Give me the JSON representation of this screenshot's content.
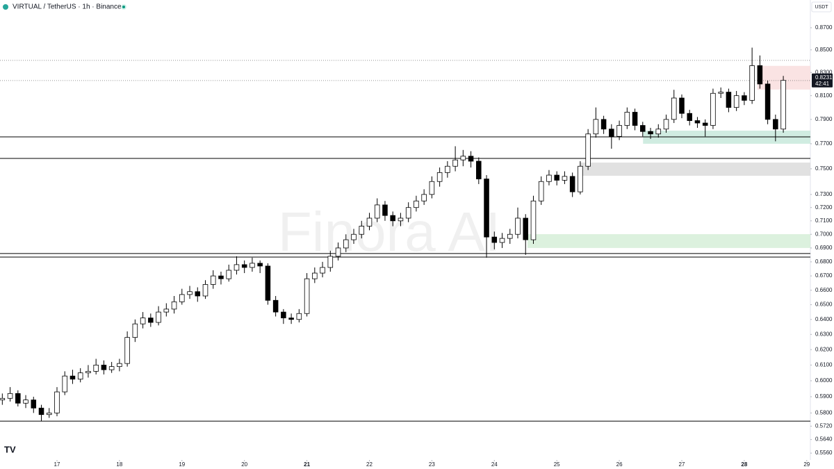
{
  "chart_data": {
    "type": "candlestick",
    "title": "VIRTUAL / TetherUS · 1h · Binance",
    "currency": "USDT",
    "watermark": "Finora AI",
    "countdown": "42:41",
    "log_scale": true,
    "up_color": "#ffffff",
    "down_color": "#000000",
    "x": [
      16.125,
      16.25,
      16.375,
      16.5,
      16.625,
      16.75,
      16.875,
      17,
      17.125,
      17.25,
      17.375,
      17.5,
      17.625,
      17.75,
      17.875,
      18,
      18.125,
      18.25,
      18.375,
      18.5,
      18.625,
      18.75,
      18.875,
      19,
      19.125,
      19.25,
      19.375,
      19.5,
      19.625,
      19.75,
      19.875,
      20,
      20.125,
      20.25,
      20.375,
      20.5,
      20.625,
      20.75,
      20.875,
      21,
      21.125,
      21.25,
      21.375,
      21.5,
      21.625,
      21.75,
      21.875,
      22,
      22.125,
      22.25,
      22.375,
      22.5,
      22.625,
      22.75,
      22.875,
      23,
      23.125,
      23.25,
      23.375,
      23.5,
      23.625,
      23.75,
      23.875,
      24,
      24.125,
      24.25,
      24.375,
      24.5,
      24.625,
      24.75,
      24.875,
      25,
      25.125,
      25.25,
      25.375,
      25.5,
      25.625,
      25.75,
      25.875,
      26,
      26.125,
      26.25,
      26.375,
      26.5,
      26.625,
      26.75,
      26.875,
      27,
      27.125,
      27.25,
      27.375,
      27.5,
      27.625,
      27.75,
      27.875,
      28,
      28.125,
      28.25,
      28.375,
      28.5,
      28.625
    ],
    "open": [
      0.588,
      0.589,
      0.592,
      0.586,
      0.588,
      0.583,
      0.579,
      0.58,
      0.593,
      0.603,
      0.601,
      0.605,
      0.606,
      0.61,
      0.607,
      0.609,
      0.611,
      0.628,
      0.637,
      0.641,
      0.638,
      0.645,
      0.647,
      0.652,
      0.657,
      0.659,
      0.656,
      0.664,
      0.67,
      0.668,
      0.674,
      0.678,
      0.676,
      0.679,
      0.677,
      0.653,
      0.645,
      0.641,
      0.64,
      0.644,
      0.668,
      0.672,
      0.676,
      0.684,
      0.69,
      0.696,
      0.7,
      0.706,
      0.712,
      0.722,
      0.714,
      0.71,
      0.712,
      0.72,
      0.725,
      0.73,
      0.74,
      0.747,
      0.752,
      0.757,
      0.76,
      0.756,
      0.742,
      0.698,
      0.694,
      0.697,
      0.7,
      0.712,
      0.696,
      0.725,
      0.74,
      0.745,
      0.741,
      0.744,
      0.732,
      0.752,
      0.778,
      0.79,
      0.782,
      0.776,
      0.785,
      0.796,
      0.785,
      0.78,
      0.778,
      0.782,
      0.79,
      0.808,
      0.795,
      0.789,
      0.787,
      0.785,
      0.812,
      0.813,
      0.8,
      0.81,
      0.806,
      0.836,
      0.82,
      0.79,
      0.782
    ],
    "high": [
      0.592,
      0.596,
      0.594,
      0.591,
      0.59,
      0.585,
      0.583,
      0.596,
      0.606,
      0.607,
      0.608,
      0.61,
      0.614,
      0.613,
      0.612,
      0.614,
      0.632,
      0.64,
      0.645,
      0.644,
      0.649,
      0.651,
      0.656,
      0.661,
      0.663,
      0.662,
      0.667,
      0.674,
      0.673,
      0.678,
      0.684,
      0.681,
      0.683,
      0.681,
      0.679,
      0.656,
      0.647,
      0.644,
      0.647,
      0.672,
      0.676,
      0.68,
      0.688,
      0.694,
      0.7,
      0.704,
      0.71,
      0.716,
      0.727,
      0.725,
      0.717,
      0.716,
      0.724,
      0.729,
      0.734,
      0.744,
      0.751,
      0.756,
      0.768,
      0.765,
      0.764,
      0.759,
      0.745,
      0.702,
      0.701,
      0.704,
      0.72,
      0.715,
      0.729,
      0.744,
      0.749,
      0.748,
      0.748,
      0.747,
      0.756,
      0.782,
      0.8,
      0.793,
      0.786,
      0.789,
      0.8,
      0.799,
      0.788,
      0.783,
      0.786,
      0.794,
      0.815,
      0.811,
      0.798,
      0.792,
      0.79,
      0.816,
      0.817,
      0.816,
      0.814,
      0.813,
      0.852,
      0.845,
      0.823,
      0.794,
      0.827
    ],
    "low": [
      0.585,
      0.587,
      0.584,
      0.583,
      0.58,
      0.575,
      0.577,
      0.578,
      0.591,
      0.598,
      0.599,
      0.602,
      0.604,
      0.604,
      0.605,
      0.606,
      0.609,
      0.625,
      0.634,
      0.635,
      0.636,
      0.642,
      0.644,
      0.65,
      0.654,
      0.652,
      0.654,
      0.661,
      0.664,
      0.666,
      0.671,
      0.672,
      0.673,
      0.672,
      0.65,
      0.642,
      0.637,
      0.637,
      0.638,
      0.642,
      0.665,
      0.669,
      0.673,
      0.681,
      0.687,
      0.693,
      0.697,
      0.703,
      0.709,
      0.71,
      0.706,
      0.706,
      0.709,
      0.717,
      0.722,
      0.727,
      0.736,
      0.743,
      0.748,
      0.752,
      0.751,
      0.738,
      0.683,
      0.689,
      0.69,
      0.693,
      0.697,
      0.685,
      0.693,
      0.722,
      0.737,
      0.737,
      0.738,
      0.728,
      0.73,
      0.749,
      0.775,
      0.778,
      0.766,
      0.773,
      0.782,
      0.781,
      0.776,
      0.774,
      0.775,
      0.779,
      0.787,
      0.791,
      0.785,
      0.783,
      0.776,
      0.782,
      0.808,
      0.796,
      0.797,
      0.802,
      0.803,
      0.816,
      0.786,
      0.772,
      0.779
    ],
    "close": [
      0.589,
      0.592,
      0.586,
      0.588,
      0.583,
      0.579,
      0.58,
      0.593,
      0.603,
      0.601,
      0.605,
      0.606,
      0.61,
      0.607,
      0.609,
      0.611,
      0.628,
      0.637,
      0.641,
      0.638,
      0.645,
      0.647,
      0.652,
      0.657,
      0.659,
      0.656,
      0.664,
      0.67,
      0.668,
      0.674,
      0.678,
      0.676,
      0.679,
      0.677,
      0.653,
      0.645,
      0.641,
      0.64,
      0.644,
      0.668,
      0.672,
      0.676,
      0.684,
      0.69,
      0.696,
      0.7,
      0.706,
      0.712,
      0.722,
      0.714,
      0.71,
      0.712,
      0.72,
      0.725,
      0.73,
      0.74,
      0.747,
      0.752,
      0.757,
      0.76,
      0.756,
      0.742,
      0.698,
      0.694,
      0.697,
      0.7,
      0.712,
      0.696,
      0.725,
      0.74,
      0.745,
      0.741,
      0.744,
      0.732,
      0.752,
      0.778,
      0.79,
      0.782,
      0.776,
      0.785,
      0.796,
      0.785,
      0.78,
      0.778,
      0.782,
      0.79,
      0.808,
      0.795,
      0.789,
      0.787,
      0.785,
      0.812,
      0.813,
      0.8,
      0.81,
      0.806,
      0.836,
      0.82,
      0.79,
      0.782,
      0.8231
    ],
    "xlim": [
      16.088,
      29.058
    ],
    "xticks": [
      17,
      18,
      19,
      20,
      21,
      22,
      23,
      24,
      25,
      26,
      27,
      28,
      29
    ],
    "ylim": [
      0.552,
      0.8958
    ],
    "yticks": [
      {
        "value": 0.87,
        "label": "0.8700"
      },
      {
        "value": 0.85,
        "label": "0.8500"
      },
      {
        "value": 0.83,
        "label": "0.8300"
      },
      {
        "value": 0.81,
        "label": "0.8100"
      },
      {
        "value": 0.79,
        "label": "0.7900"
      },
      {
        "value": 0.77,
        "label": "0.7700"
      },
      {
        "value": 0.75,
        "label": "0.7500"
      },
      {
        "value": 0.73,
        "label": "0.7300"
      },
      {
        "value": 0.72,
        "label": "0.7200"
      },
      {
        "value": 0.71,
        "label": "0.7100"
      },
      {
        "value": 0.7,
        "label": "0.7000"
      },
      {
        "value": 0.69,
        "label": "0.6900"
      },
      {
        "value": 0.68,
        "label": "0.6800"
      },
      {
        "value": 0.67,
        "label": "0.6700"
      },
      {
        "value": 0.66,
        "label": "0.6600"
      },
      {
        "value": 0.65,
        "label": "0.6500"
      },
      {
        "value": 0.64,
        "label": "0.6400"
      },
      {
        "value": 0.63,
        "label": "0.6300"
      },
      {
        "value": 0.62,
        "label": "0.6200"
      },
      {
        "value": 0.61,
        "label": "0.6100"
      },
      {
        "value": 0.6,
        "label": "0.6000"
      },
      {
        "value": 0.59,
        "label": "0.5900"
      },
      {
        "value": 0.58,
        "label": "0.5800"
      },
      {
        "value": 0.572,
        "label": "0.5720"
      },
      {
        "value": 0.564,
        "label": "0.5640"
      },
      {
        "value": 0.556,
        "label": "0.5560"
      }
    ],
    "levels": [
      0.7756,
      0.7582,
      0.686,
      0.6834,
      0.575
    ],
    "dashed_levels": [
      0.8406,
      0.823
    ],
    "zones": [
      {
        "from": 28.21,
        "low": 0.8152,
        "high": 0.8358,
        "color": "#f9dede"
      },
      {
        "from": 26.38,
        "low": 0.77,
        "high": 0.7807,
        "color": "#c8e9dc"
      },
      {
        "from": 25.37,
        "low": 0.7445,
        "high": 0.7549,
        "color": "#dcdcdc"
      },
      {
        "from": 24.53,
        "low": 0.69,
        "high": 0.7001,
        "color": "#d6efd8"
      }
    ]
  }
}
